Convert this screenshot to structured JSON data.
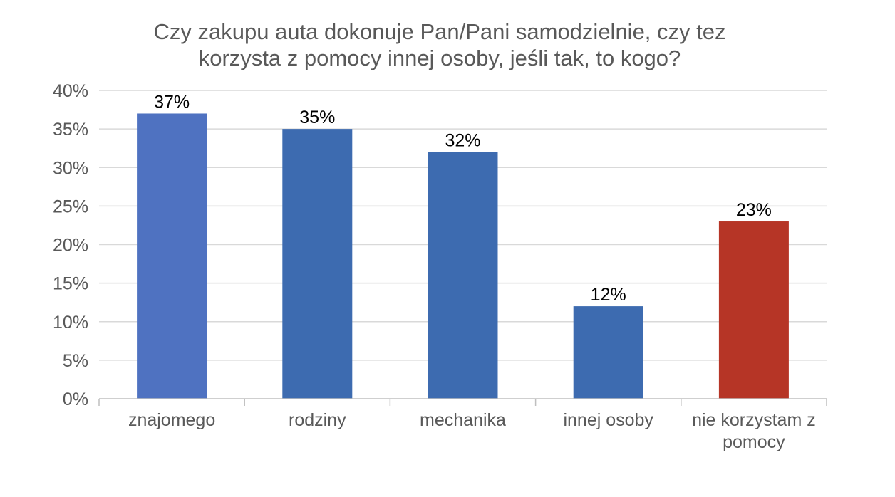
{
  "chart_data": {
    "type": "bar",
    "title_lines": [
      "Czy zakupu auta dokonuje Pan/Pani samodzielnie, czy tez",
      "korzysta z pomocy innej osoby, jeśli tak, to kogo?"
    ],
    "categories": [
      [
        "znajomego"
      ],
      [
        "rodziny"
      ],
      [
        "mechanika"
      ],
      [
        "innej osoby"
      ],
      [
        "nie korzystam z",
        "pomocy"
      ]
    ],
    "values": [
      37,
      35,
      32,
      12,
      23
    ],
    "data_labels": [
      "37%",
      "35%",
      "32%",
      "12%",
      "23%"
    ],
    "bar_colors": [
      "#4f72c1",
      "#3d6bb0",
      "#3d6bb0",
      "#3d6bb0",
      "#b63526"
    ],
    "ylim": [
      0,
      40
    ],
    "yticks": [
      0,
      5,
      10,
      15,
      20,
      25,
      30,
      35,
      40
    ],
    "ytick_labels": [
      "0%",
      "5%",
      "10%",
      "15%",
      "20%",
      "25%",
      "30%",
      "35%",
      "40%"
    ],
    "grid": true,
    "legend": false
  }
}
